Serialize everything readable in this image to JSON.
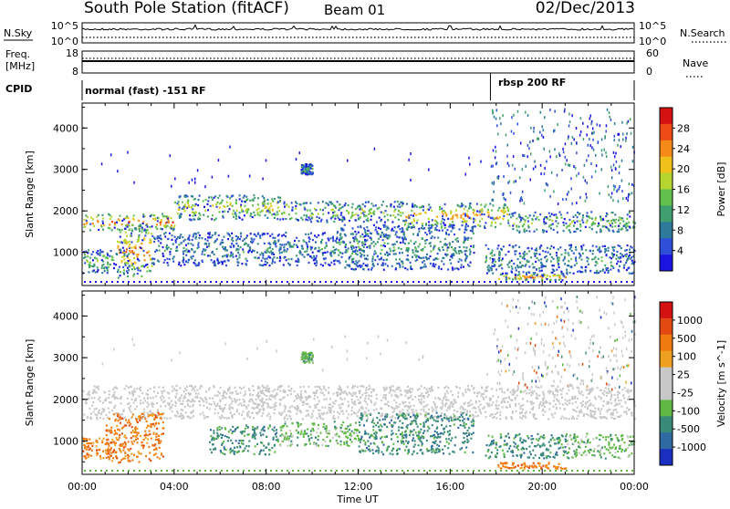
{
  "header": {
    "station": "South Pole Station (fitACF)",
    "beam": "Beam 01",
    "date": "02/Dec/2013"
  },
  "top_panels": {
    "nsky_label": "N.Sky",
    "nsky_ticks": [
      "10^5",
      "10^0"
    ],
    "nsearch_label": "N.Search",
    "nsearch_ticks": [
      "10^5",
      "10^0"
    ],
    "freq_label": "Freq.",
    "freq_unit": "[MHz]",
    "freq_ticks": [
      "18",
      "8"
    ],
    "nave_label": "Nave",
    "nave_ticks": [
      "60",
      "0"
    ],
    "cpid_label": "CPID",
    "cpid_segments": [
      {
        "label": "normal (fast) -151 RF",
        "start_hour": 0,
        "end_hour": 17.75
      },
      {
        "label": "rbsp 200 RF",
        "start_hour": 17.75,
        "end_hour": 24
      }
    ]
  },
  "x_axis": {
    "label": "Time UT",
    "ticks": [
      "00:00",
      "04:00",
      "08:00",
      "12:00",
      "16:00",
      "20:00",
      "00:00"
    ]
  },
  "chart_data": [
    {
      "type": "heatmap",
      "ylabel": "Slant Range [km]",
      "ylim": [
        200,
        4600
      ],
      "yticks": [
        1000,
        2000,
        3000,
        4000
      ],
      "xlim_hours": [
        0,
        24
      ],
      "colorbar": {
        "label": "Power [dB]",
        "ticks": [
          "28",
          "24",
          "20",
          "16",
          "12",
          "8",
          "4"
        ],
        "colors": [
          "#1a14e0",
          "#2f4fd8",
          "#2e7a9a",
          "#3f9f6e",
          "#62c14c",
          "#b6d52e",
          "#f0c11a",
          "#f58a18",
          "#ee4a15",
          "#d51212"
        ]
      },
      "bands": [
        {
          "t0": 0.0,
          "t1": 4.0,
          "r0": 1550,
          "r1": 1950,
          "level": 0.85
        },
        {
          "t0": 4.0,
          "t1": 9.0,
          "r0": 1800,
          "r1": 2400,
          "level": 0.6
        },
        {
          "t0": 9.0,
          "t1": 14.0,
          "r0": 1750,
          "r1": 2250,
          "level": 0.55
        },
        {
          "t0": 14.0,
          "t1": 18.5,
          "r0": 1600,
          "r1": 2200,
          "level": 0.75
        },
        {
          "t0": 18.5,
          "t1": 24.0,
          "r0": 1500,
          "r1": 2000,
          "level": 0.5
        },
        {
          "t0": 1.5,
          "t1": 3.0,
          "r0": 400,
          "r1": 1700,
          "level": 0.8
        },
        {
          "t0": 0.0,
          "t1": 2.0,
          "r0": 500,
          "r1": 1100,
          "level": 0.45
        },
        {
          "t0": 3.0,
          "t1": 11.0,
          "r0": 700,
          "r1": 1500,
          "level": 0.3
        },
        {
          "t0": 11.0,
          "t1": 17.0,
          "r0": 600,
          "r1": 1700,
          "level": 0.35
        },
        {
          "t0": 17.5,
          "t1": 24.0,
          "r0": 500,
          "r1": 1200,
          "level": 0.35
        },
        {
          "t0": 18.0,
          "t1": 21.0,
          "r0": 350,
          "r1": 500,
          "level": 0.8
        },
        {
          "t0": 9.5,
          "t1": 10.0,
          "r0": 2900,
          "r1": 3150,
          "level": 0.4
        }
      ]
    },
    {
      "type": "heatmap",
      "ylabel": "Slant Range [km]",
      "ylim": [
        200,
        4600
      ],
      "yticks": [
        1000,
        2000,
        3000,
        4000
      ],
      "xlim_hours": [
        0,
        24
      ],
      "colorbar": {
        "label": "Velocity [m s^-1]",
        "ticks": [
          "1000",
          "500",
          "100",
          "25",
          "-25",
          "-100",
          "-500",
          "-1000"
        ],
        "colors": [
          "#1a2fbf",
          "#2f6aa0",
          "#3a8a7a",
          "#5fb843",
          "#c8c8c8",
          "#c8c8c8",
          "#f0a020",
          "#f07a10",
          "#e34a12",
          "#d51212"
        ]
      },
      "bands": [
        {
          "t0": 0.0,
          "t1": 24.0,
          "r0": 1550,
          "r1": 2350,
          "level": 4.5
        },
        {
          "t0": 1.0,
          "t1": 3.5,
          "r0": 500,
          "r1": 1700,
          "level": 7
        },
        {
          "t0": 0.0,
          "t1": 1.5,
          "r0": 600,
          "r1": 1100,
          "level": 7
        },
        {
          "t0": 5.5,
          "t1": 8.5,
          "r0": 700,
          "r1": 1400,
          "level": 2
        },
        {
          "t0": 8.5,
          "t1": 12.0,
          "r0": 900,
          "r1": 1500,
          "level": 3
        },
        {
          "t0": 12.0,
          "t1": 17.0,
          "r0": 700,
          "r1": 1700,
          "level": 2
        },
        {
          "t0": 17.5,
          "t1": 21.0,
          "r0": 600,
          "r1": 1200,
          "level": 2
        },
        {
          "t0": 21.0,
          "t1": 24.0,
          "r0": 600,
          "r1": 1200,
          "level": 3
        },
        {
          "t0": 18.0,
          "t1": 21.0,
          "r0": 350,
          "r1": 500,
          "level": 7
        },
        {
          "t0": 9.5,
          "t1": 10.0,
          "r0": 2900,
          "r1": 3150,
          "level": 3
        }
      ]
    }
  ]
}
